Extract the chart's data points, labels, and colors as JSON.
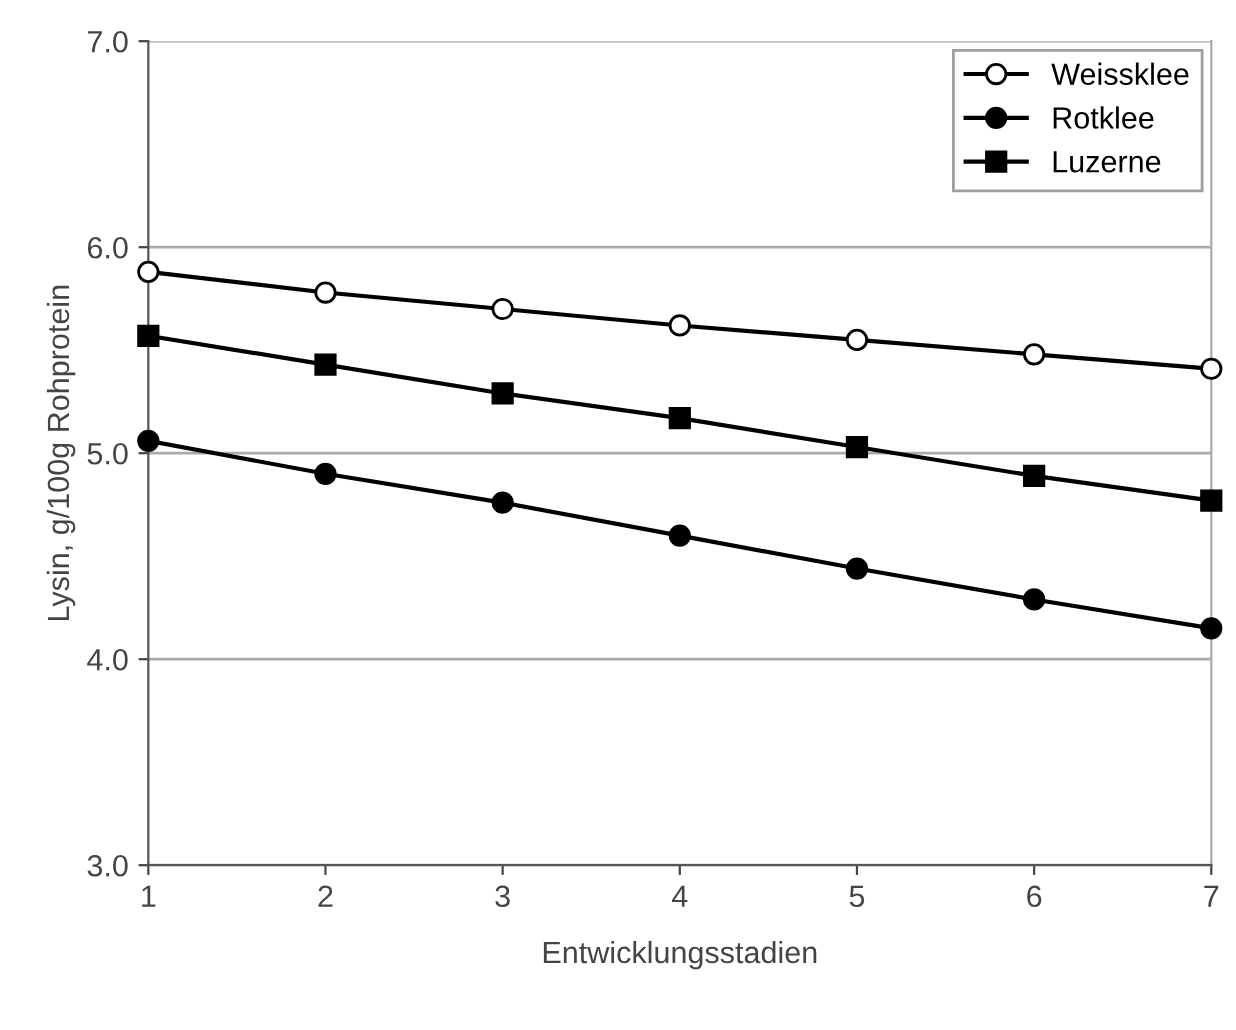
{
  "chart_data": {
    "type": "line",
    "xlabel": "Entwicklungsstadien",
    "ylabel": "Lysin, g/100g Rohprotein",
    "x": [
      1,
      2,
      3,
      4,
      5,
      6,
      7
    ],
    "series": [
      {
        "name": "Weissklee",
        "color": "#000000",
        "marker": "circle",
        "values": [
          5.88,
          5.78,
          5.7,
          5.62,
          5.55,
          5.48,
          5.41
        ]
      },
      {
        "name": "Rotklee",
        "color": "#000000",
        "marker": "circle",
        "values": [
          5.06,
          4.9,
          4.76,
          4.6,
          4.44,
          4.29,
          4.15
        ]
      },
      {
        "name": "Luzerne",
        "color": "#000000",
        "marker": "square",
        "values": [
          5.57,
          5.43,
          5.29,
          5.17,
          5.03,
          4.89,
          4.77
        ]
      }
    ],
    "xlim": [
      1,
      7
    ],
    "xticks": [
      1,
      2,
      3,
      4,
      5,
      6,
      7
    ],
    "ylim": [
      3.0,
      7.0
    ],
    "yticks": [
      {
        "value": 3,
        "label": "3.0"
      },
      {
        "value": 4,
        "label": "4.0"
      },
      {
        "value": 5,
        "label": "5.0"
      },
      {
        "value": 6,
        "label": "6.0"
      },
      {
        "value": 7,
        "label": "7.0"
      }
    ],
    "grid": "y",
    "legend": "top right",
    "line_style": "solid"
  }
}
